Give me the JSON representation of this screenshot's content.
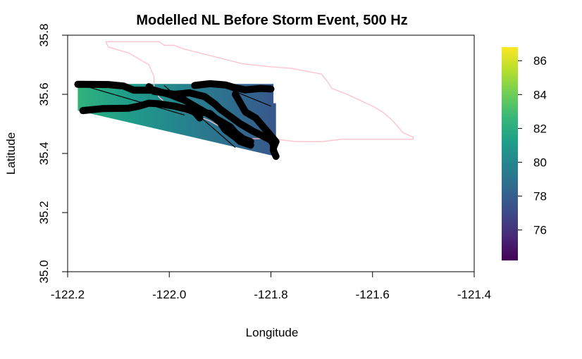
{
  "chart_data": {
    "type": "heatmap",
    "title": "Modelled NL Before Storm Event, 500 Hz",
    "xlabel": "Longitude",
    "ylabel": "Latitude",
    "xlim": [
      -122.2,
      -121.4
    ],
    "ylim": [
      35.0,
      35.8
    ],
    "x_ticks": [
      -122.2,
      -122.0,
      -121.8,
      -121.6,
      -121.4
    ],
    "x_tick_labels": [
      "-122.2",
      "-122.0",
      "-121.8",
      "-121.6",
      "-121.4"
    ],
    "y_ticks": [
      35.0,
      35.2,
      35.4,
      35.6,
      35.8
    ],
    "y_tick_labels": [
      "35.0",
      "35.2",
      "35.4",
      "35.6",
      "35.8"
    ],
    "colorbar": {
      "palette": "viridis",
      "min": 74.2,
      "max": 86.8,
      "ticks": [
        76,
        78,
        80,
        82,
        84,
        86
      ],
      "tick_labels": [
        "76",
        "78",
        "80",
        "82",
        "84",
        "86"
      ],
      "colors": [
        "#440154",
        "#482878",
        "#3E4A89",
        "#31688E",
        "#26828E",
        "#1F9E89",
        "#35B779",
        "#6DCD59",
        "#B4DE2C",
        "#FDE725"
      ]
    },
    "raster_region": {
      "value_west": 82.3,
      "value_east": 77.6,
      "polygon": [
        [
          -122.18,
          35.635
        ],
        [
          -121.795,
          35.635
        ],
        [
          -121.795,
          35.57
        ],
        [
          -121.79,
          35.57
        ],
        [
          -121.79,
          35.39
        ],
        [
          -122.18,
          35.545
        ]
      ]
    },
    "pink_boundary": {
      "color": "#ffc0cb",
      "points": [
        [
          -122.125,
          35.778
        ],
        [
          -122.02,
          35.778
        ],
        [
          -122.01,
          35.766
        ],
        [
          -121.99,
          35.766
        ],
        [
          -121.975,
          35.755
        ],
        [
          -121.88,
          35.714
        ],
        [
          -121.855,
          35.703
        ],
        [
          -121.8,
          35.693
        ],
        [
          -121.76,
          35.688
        ],
        [
          -121.7,
          35.668
        ],
        [
          -121.69,
          35.646
        ],
        [
          -121.68,
          35.62
        ],
        [
          -121.65,
          35.6
        ],
        [
          -121.6,
          35.56
        ],
        [
          -121.58,
          35.54
        ],
        [
          -121.56,
          35.51
        ],
        [
          -121.54,
          35.47
        ],
        [
          -121.52,
          35.455
        ],
        [
          -121.52,
          35.448
        ],
        [
          -121.66,
          35.448
        ],
        [
          -121.7,
          35.44
        ],
        [
          -121.75,
          35.44
        ],
        [
          -121.8,
          35.45
        ],
        [
          -121.85,
          35.45
        ],
        [
          -121.88,
          35.47
        ],
        [
          -121.92,
          35.51
        ],
        [
          -121.95,
          35.53
        ],
        [
          -121.98,
          35.545
        ],
        [
          -122.0,
          35.56
        ],
        [
          -122.02,
          35.59
        ],
        [
          -122.03,
          35.62
        ],
        [
          -122.03,
          35.66
        ],
        [
          -122.04,
          35.7
        ],
        [
          -122.08,
          35.74
        ],
        [
          -122.12,
          35.76
        ],
        [
          -122.125,
          35.778
        ]
      ]
    },
    "black_lines": [
      [
        [
          -122.17,
          35.63
        ],
        [
          -121.97,
          35.53
        ]
      ],
      [
        [
          -122.01,
          35.63
        ],
        [
          -121.87,
          35.42
        ]
      ],
      [
        [
          -121.9,
          35.63
        ],
        [
          -121.8,
          35.56
        ]
      ]
    ],
    "black_tracks": [
      [
        [
          -122.18,
          35.634
        ],
        [
          -122.12,
          35.633
        ],
        [
          -122.09,
          35.628
        ],
        [
          -122.07,
          35.614
        ],
        [
          -122.03,
          35.614
        ],
        [
          -122.0,
          35.6
        ],
        [
          -121.97,
          35.58
        ],
        [
          -121.95,
          35.56
        ],
        [
          -121.93,
          35.54
        ],
        [
          -121.9,
          35.51
        ],
        [
          -121.88,
          35.49
        ],
        [
          -121.87,
          35.47
        ],
        [
          -121.855,
          35.45
        ],
        [
          -121.84,
          35.44
        ]
      ],
      [
        [
          -122.17,
          35.545
        ],
        [
          -122.13,
          35.552
        ],
        [
          -122.08,
          35.553
        ],
        [
          -122.06,
          35.56
        ],
        [
          -122.04,
          35.57
        ],
        [
          -122.02,
          35.568
        ],
        [
          -121.99,
          35.56
        ],
        [
          -121.96,
          35.547
        ],
        [
          -121.92,
          35.535
        ],
        [
          -121.9,
          35.505
        ],
        [
          -121.89,
          35.48
        ],
        [
          -121.87,
          35.455
        ],
        [
          -121.86,
          35.44
        ],
        [
          -121.84,
          35.428
        ]
      ],
      [
        [
          -122.04,
          35.626
        ],
        [
          -122.03,
          35.61
        ],
        [
          -121.99,
          35.6
        ],
        [
          -121.96,
          35.605
        ],
        [
          -121.93,
          35.592
        ],
        [
          -121.91,
          35.567
        ],
        [
          -121.9,
          35.55
        ],
        [
          -121.88,
          35.525
        ],
        [
          -121.86,
          35.5
        ],
        [
          -121.835,
          35.475
        ],
        [
          -121.815,
          35.458
        ],
        [
          -121.8,
          35.445
        ],
        [
          -121.795,
          35.43
        ],
        [
          -121.795,
          35.41
        ],
        [
          -121.79,
          35.39
        ]
      ],
      [
        [
          -121.95,
          35.63
        ],
        [
          -121.92,
          35.636
        ],
        [
          -121.89,
          35.632
        ],
        [
          -121.87,
          35.622
        ],
        [
          -121.85,
          35.615
        ],
        [
          -121.82,
          35.62
        ],
        [
          -121.8,
          35.618
        ]
      ],
      [
        [
          -121.87,
          35.6
        ],
        [
          -121.85,
          35.54
        ],
        [
          -121.83,
          35.52
        ],
        [
          -121.82,
          35.5
        ],
        [
          -121.81,
          35.48
        ],
        [
          -121.8,
          35.46
        ],
        [
          -121.79,
          35.44
        ],
        [
          -121.795,
          35.42
        ]
      ],
      [
        [
          -121.99,
          35.56
        ],
        [
          -121.97,
          35.552
        ],
        [
          -121.95,
          35.54
        ],
        [
          -121.94,
          35.52
        ]
      ]
    ]
  }
}
